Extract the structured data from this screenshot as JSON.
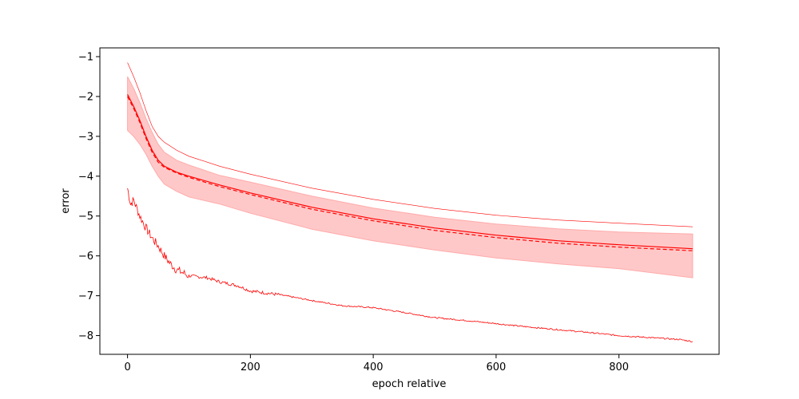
{
  "chart_data": {
    "type": "line",
    "title": "",
    "xlabel": "epoch relative",
    "ylabel": "error",
    "xlim": [
      -45,
      963
    ],
    "ylim": [
      -8.47,
      -0.78
    ],
    "xticks": [
      0,
      200,
      400,
      600,
      800
    ],
    "yticks": [
      -8,
      -7,
      -6,
      -5,
      -4,
      -3,
      -2,
      -1
    ],
    "xtick_labels": [
      "0",
      "200",
      "400",
      "600",
      "800"
    ],
    "ytick_labels": [
      "−8",
      "−7",
      "−6",
      "−5",
      "−4",
      "−3",
      "−2",
      "−1"
    ],
    "grid": false,
    "legend": "none",
    "color": "#ff0000",
    "band_color": "#ffc8c8",
    "x": [
      0,
      10,
      20,
      30,
      40,
      50,
      60,
      80,
      100,
      150,
      200,
      300,
      400,
      500,
      600,
      700,
      800,
      920
    ],
    "series": [
      {
        "role": "mean",
        "style": "solid",
        "values": [
          -1.95,
          -2.25,
          -2.6,
          -3.0,
          -3.35,
          -3.6,
          -3.75,
          -3.9,
          -4.0,
          -4.22,
          -4.42,
          -4.78,
          -5.07,
          -5.3,
          -5.48,
          -5.62,
          -5.72,
          -5.82
        ]
      },
      {
        "role": "median",
        "style": "dashed",
        "values": [
          -2.0,
          -2.3,
          -2.65,
          -3.05,
          -3.4,
          -3.65,
          -3.78,
          -3.92,
          -4.03,
          -4.26,
          -4.46,
          -4.83,
          -5.12,
          -5.36,
          -5.54,
          -5.68,
          -5.78,
          -5.87
        ]
      },
      {
        "role": "upper-bound",
        "style": "thin",
        "values": [
          -1.15,
          -1.5,
          -1.9,
          -2.35,
          -2.75,
          -3.0,
          -3.15,
          -3.35,
          -3.5,
          -3.75,
          -3.95,
          -4.3,
          -4.58,
          -4.81,
          -4.98,
          -5.1,
          -5.18,
          -5.27
        ]
      }
    ],
    "band": {
      "upper": [
        -1.5,
        -1.8,
        -2.15,
        -2.55,
        -2.9,
        -3.2,
        -3.4,
        -3.6,
        -3.72,
        -3.98,
        -4.15,
        -4.5,
        -4.8,
        -5.03,
        -5.2,
        -5.32,
        -5.4,
        -5.45
      ],
      "lower": [
        -2.85,
        -3.0,
        -3.2,
        -3.45,
        -3.75,
        -4.0,
        -4.2,
        -4.38,
        -4.52,
        -4.7,
        -4.93,
        -5.33,
        -5.62,
        -5.85,
        -6.05,
        -6.2,
        -6.32,
        -6.55
      ]
    },
    "min_series": {
      "role": "minimum",
      "style": "noisy",
      "x": [
        0,
        5,
        10,
        20,
        30,
        40,
        50,
        60,
        70,
        80,
        100,
        130,
        150,
        180,
        200,
        250,
        300,
        350,
        400,
        450,
        500,
        550,
        600,
        650,
        700,
        750,
        800,
        850,
        900,
        920
      ],
      "values": [
        -4.3,
        -4.7,
        -4.6,
        -5.0,
        -5.3,
        -5.55,
        -5.75,
        -6.0,
        -6.2,
        -6.35,
        -6.5,
        -6.55,
        -6.65,
        -6.75,
        -6.88,
        -6.98,
        -7.12,
        -7.25,
        -7.3,
        -7.42,
        -7.55,
        -7.62,
        -7.7,
        -7.78,
        -7.85,
        -7.92,
        -8.0,
        -8.05,
        -8.1,
        -8.15
      ]
    }
  }
}
